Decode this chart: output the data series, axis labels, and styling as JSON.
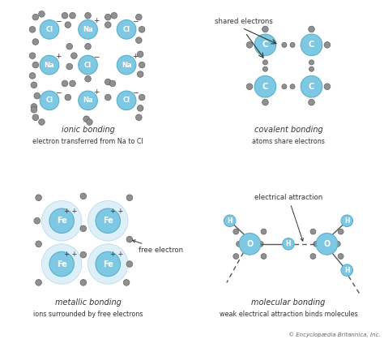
{
  "atom_blue": "#7ec8e3",
  "atom_blue_edge": "#5ab0cc",
  "atom_gray": "#909090",
  "atom_gray_edge": "#606060",
  "fe_halo": "#d8eef8",
  "text_color": "#333333",
  "copyright": "© Encyclopædia Britannica, Inc.",
  "ionic_title": "ionic bonding",
  "ionic_subtitle": "electron transferred from Na to Cl",
  "covalent_title": "covalent bonding",
  "covalent_subtitle": "atoms share electrons",
  "metallic_title": "metallic bonding",
  "metallic_subtitle": "ions surrounded by free electrons",
  "molecular_title": "molecular bonding",
  "molecular_subtitle": "weak electrical attraction binds molecules"
}
